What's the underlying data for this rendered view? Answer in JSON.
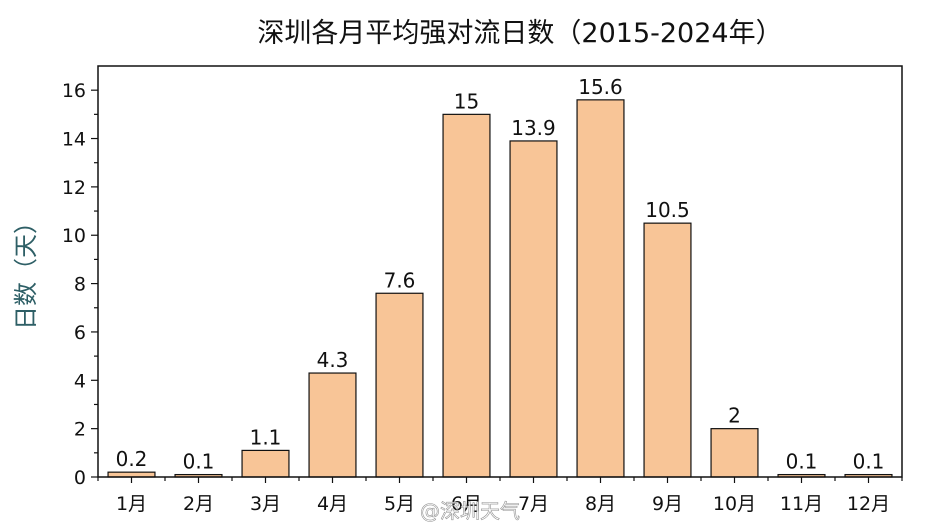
{
  "chart_data": {
    "type": "bar",
    "title": "深圳各月平均强对流日数（2015-2024年）",
    "xlabel": "",
    "ylabel": "日数（天）",
    "categories": [
      "1月",
      "2月",
      "3月",
      "4月",
      "5月",
      "6月",
      "7月",
      "8月",
      "9月",
      "10月",
      "11月",
      "12月"
    ],
    "values": [
      0.2,
      0.1,
      1.1,
      4.3,
      7.6,
      15,
      13.9,
      15.6,
      10.5,
      2,
      0.1,
      0.1
    ],
    "data_labels": [
      "0.2",
      "0.1",
      "1.1",
      "4.3",
      "7.6",
      "15",
      "13.9",
      "15.6",
      "10.5",
      "2",
      "0.1",
      "0.1"
    ],
    "ylim": [
      0,
      17
    ],
    "yticks": [
      0,
      2,
      4,
      6,
      8,
      10,
      12,
      14,
      16
    ],
    "grid": false,
    "legend": "none",
    "bar_color": "#f8c597",
    "bar_edge_color": "#111111"
  },
  "watermark": {
    "text": "@深圳天气"
  }
}
